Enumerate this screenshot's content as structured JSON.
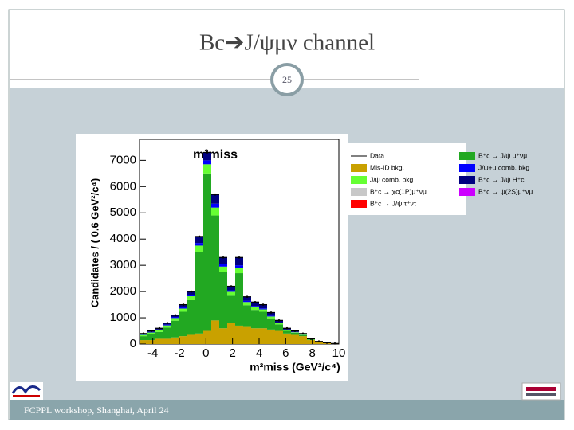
{
  "slide": {
    "title": "Bc➔J/ψμν channel",
    "page_number": "25",
    "footer": "FCPPL workshop, Shanghai, April 24"
  },
  "chart_data": {
    "type": "stacked-histogram",
    "label": "m²miss",
    "xlabel": "m²miss (GeV²/c⁴)",
    "ylabel": "Candidates / ( 0.6 GeV²/c⁴)",
    "xlim": [
      -5,
      10
    ],
    "xticks": [
      -4,
      -2,
      0,
      2,
      4,
      6,
      8,
      10
    ],
    "ylim": [
      0,
      7800
    ],
    "yticks": [
      0,
      1000,
      2000,
      3000,
      4000,
      5000,
      6000,
      7000
    ],
    "bins": [
      -5,
      -4.4,
      -3.8,
      -3.2,
      -2.6,
      -2,
      -1.4,
      -0.8,
      -0.2,
      0.4,
      1,
      1.6,
      2.2,
      2.8,
      3.4,
      4,
      4.6,
      5.2,
      5.8,
      6.4,
      7,
      7.6,
      8.2,
      8.8,
      9.4,
      10
    ],
    "data_points": {
      "name": "Data",
      "color": "#000000",
      "values": [
        400,
        500,
        600,
        800,
        1100,
        1500,
        2000,
        4100,
        7300,
        5700,
        3300,
        2200,
        3300,
        1800,
        1600,
        1500,
        1200,
        900,
        600,
        500,
        400,
        200,
        100,
        50,
        20
      ]
    },
    "series": [
      {
        "name": "Mis-ID bkg.",
        "color": "#c9a100",
        "values": [
          150,
          150,
          200,
          200,
          250,
          300,
          350,
          400,
          500,
          900,
          600,
          800,
          700,
          650,
          600,
          600,
          550,
          500,
          400,
          350,
          300,
          150,
          80,
          40,
          15
        ]
      },
      {
        "name": "J/ψ comb. bkg",
        "color": "#66ff33",
        "values": [
          50,
          50,
          60,
          80,
          100,
          120,
          150,
          250,
          350,
          300,
          200,
          150,
          200,
          120,
          100,
          90,
          70,
          50,
          30,
          20,
          15,
          10,
          5,
          0,
          0
        ]
      },
      {
        "name": "B⁺c → χc(1P)μ⁺νμ",
        "color": "#c8c8c8",
        "values": [
          0,
          0,
          0,
          0,
          0,
          0,
          0,
          0,
          0,
          0,
          0,
          0,
          0,
          0,
          0,
          0,
          0,
          0,
          0,
          0,
          0,
          0,
          0,
          0,
          0
        ]
      },
      {
        "name": "B⁺c → J/ψ τ⁺ντ",
        "color": "#ff0000",
        "values": [
          0,
          0,
          0,
          0,
          0,
          0,
          0,
          0,
          0,
          0,
          0,
          0,
          0,
          0,
          0,
          0,
          0,
          0,
          0,
          0,
          0,
          0,
          0,
          0,
          0
        ]
      },
      {
        "name": "B⁺c → J/ψ μ⁺νμ",
        "color": "#22a822",
        "values": [
          150,
          240,
          260,
          430,
          640,
          930,
          1320,
          3100,
          6000,
          4000,
          2150,
          1040,
          2000,
          830,
          700,
          630,
          430,
          250,
          100,
          80,
          45,
          25,
          10,
          10,
          5
        ]
      },
      {
        "name": "J/ψ+μ comb. bkg",
        "color": "#0000ff",
        "values": [
          20,
          20,
          30,
          30,
          40,
          50,
          60,
          100,
          150,
          150,
          100,
          60,
          100,
          50,
          50,
          40,
          30,
          20,
          20,
          10,
          10,
          5,
          0,
          0,
          0
        ]
      },
      {
        "name": "B⁺c → J/ψ H⁺c",
        "color": "#000080",
        "values": [
          30,
          40,
          50,
          60,
          70,
          100,
          120,
          250,
          300,
          350,
          250,
          150,
          300,
          150,
          150,
          140,
          120,
          80,
          50,
          40,
          30,
          10,
          5,
          0,
          0
        ]
      },
      {
        "name": "B⁺c → ψ(2S)μ⁺νμ",
        "color": "#cc00ff",
        "values": [
          0,
          0,
          0,
          0,
          0,
          0,
          0,
          0,
          0,
          0,
          0,
          0,
          0,
          0,
          0,
          0,
          0,
          0,
          0,
          0,
          0,
          0,
          0,
          0,
          0
        ]
      }
    ]
  }
}
